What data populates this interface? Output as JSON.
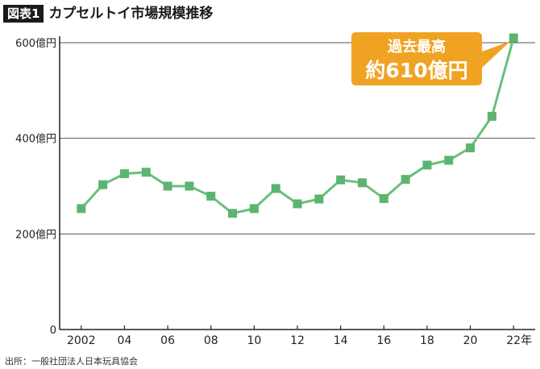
{
  "header": {
    "badge": "図表1",
    "title": "カプセルトイ市場規模推移"
  },
  "source": "出所：一般社団法人日本玩具協会",
  "colors": {
    "line": "#6abf7b",
    "marker": "#5db470",
    "callout": "#f0a323",
    "axis": "#222222",
    "grid": "#555555"
  },
  "chart_data": {
    "type": "line",
    "title": "カプセルトイ市場規模推移",
    "xlabel": "",
    "ylabel": "",
    "ylim": [
      0,
      600
    ],
    "yticks": [
      0,
      200,
      400,
      600
    ],
    "ytick_labels": [
      "0",
      "200億円",
      "400億円",
      "600億円"
    ],
    "xlim": [
      2001,
      2023
    ],
    "xticks": [
      2002,
      2004,
      2006,
      2008,
      2010,
      2012,
      2014,
      2016,
      2018,
      2020,
      2022
    ],
    "xtick_labels": [
      "2002",
      "04",
      "06",
      "08",
      "10",
      "12",
      "14",
      "16",
      "18",
      "20",
      "22年"
    ],
    "grid": "horizontal",
    "series": [
      {
        "name": "",
        "x": [
          2002,
          2003,
          2004,
          2005,
          2006,
          2007,
          2008,
          2009,
          2010,
          2011,
          2012,
          2013,
          2014,
          2015,
          2016,
          2017,
          2018,
          2019,
          2020,
          2021,
          2022
        ],
        "values": [
          253,
          303,
          326,
          329,
          300,
          300,
          279,
          243,
          253,
          295,
          263,
          273,
          313,
          307,
          274,
          314,
          344,
          354,
          380,
          446,
          610
        ]
      }
    ],
    "annotation": {
      "line1": "過去最高",
      "line2": "約610億円",
      "x": 2022,
      "y": 610
    }
  }
}
